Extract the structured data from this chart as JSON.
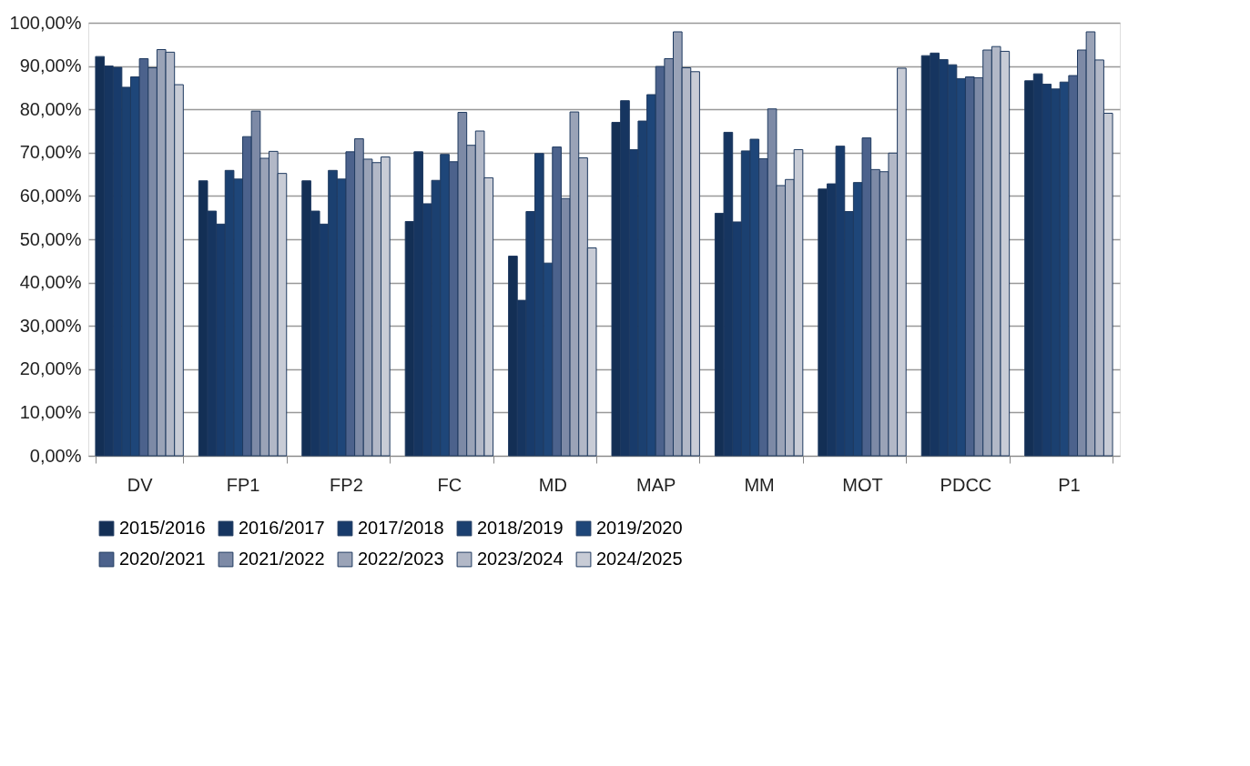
{
  "chart_data": {
    "type": "bar",
    "categories": [
      "DV",
      "FP1",
      "FP2",
      "FC",
      "MD",
      "MAP",
      "MM",
      "MOT",
      "PDCC",
      "P1"
    ],
    "series": [
      {
        "name": "2015/2016",
        "color": "#132f55",
        "values": [
          92.2,
          63.5,
          63.5,
          54.1,
          46.1,
          77.0,
          56.0,
          61.6,
          92.4,
          86.6
        ]
      },
      {
        "name": "2016/2017",
        "color": "#163560",
        "values": [
          90.0,
          56.5,
          56.5,
          70.2,
          35.9,
          82.0,
          74.7,
          62.8,
          93.0,
          88.2
        ]
      },
      {
        "name": "2017/2018",
        "color": "#183b6b",
        "values": [
          89.7,
          53.5,
          53.5,
          58.2,
          56.4,
          70.7,
          54.0,
          71.5,
          91.5,
          85.8
        ]
      },
      {
        "name": "2018/2019",
        "color": "#1b4070",
        "values": [
          85.1,
          65.9,
          65.9,
          63.6,
          69.8,
          77.3,
          70.4,
          56.4,
          90.3,
          84.7
        ]
      },
      {
        "name": "2019/2020",
        "color": "#1e4679",
        "values": [
          87.5,
          63.9,
          63.9,
          69.6,
          44.5,
          83.4,
          73.1,
          63.1,
          87.1,
          86.3
        ]
      },
      {
        "name": "2020/2021",
        "color": "#4c628c",
        "values": [
          91.7,
          73.7,
          70.2,
          67.9,
          71.3,
          89.9,
          68.6,
          73.4,
          87.5,
          87.8
        ]
      },
      {
        "name": "2021/2022",
        "color": "#7d8aa6",
        "values": [
          89.6,
          79.6,
          73.2,
          79.3,
          59.4,
          91.7,
          80.1,
          66.1,
          87.3,
          93.7
        ]
      },
      {
        "name": "2022/2023",
        "color": "#9aa3b7",
        "values": [
          93.8,
          68.7,
          68.5,
          71.7,
          79.4,
          97.9,
          62.4,
          65.6,
          93.7,
          97.9
        ]
      },
      {
        "name": "2023/2024",
        "color": "#b2b8c7",
        "values": [
          93.2,
          70.3,
          67.7,
          75.0,
          68.8,
          89.6,
          63.8,
          69.9,
          94.5,
          91.4
        ]
      },
      {
        "name": "2024/2025",
        "color": "#c8ccd6",
        "values": [
          85.7,
          65.2,
          69.0,
          64.2,
          48.0,
          88.7,
          70.7,
          89.5,
          93.4,
          79.1
        ]
      }
    ],
    "ylim": [
      0,
      100
    ],
    "yticks": [
      {
        "value": 0,
        "label": "0,00%"
      },
      {
        "value": 10,
        "label": "10,00%"
      },
      {
        "value": 20,
        "label": "20,00%"
      },
      {
        "value": 30,
        "label": "30,00%"
      },
      {
        "value": 40,
        "label": "40,00%"
      },
      {
        "value": 50,
        "label": "50,00%"
      },
      {
        "value": 60,
        "label": "60,00%"
      },
      {
        "value": 70,
        "label": "70,00%"
      },
      {
        "value": 80,
        "label": "80,00%"
      },
      {
        "value": 90,
        "label": "90,00%"
      },
      {
        "value": 100,
        "label": "100,00%"
      }
    ],
    "grid": "y",
    "legend": "bottom"
  }
}
